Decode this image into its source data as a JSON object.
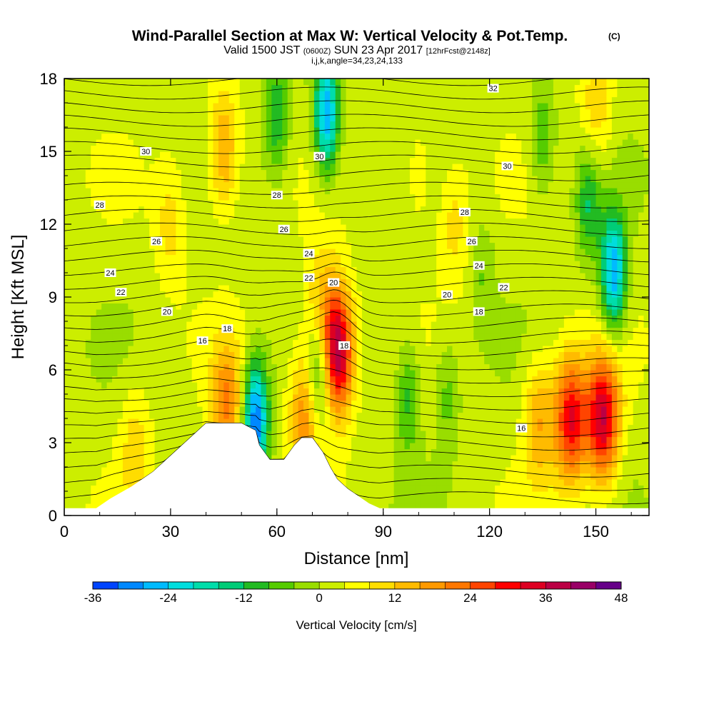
{
  "chart_data": {
    "type": "heatmap",
    "title": "Wind-Parallel Section at Max W: Vertical Velocity & Pot.Temp.",
    "title_mark": "(C)",
    "subtitle_main": "Valid 1500 JST",
    "subtitle_utc": "(0600Z)",
    "subtitle_date": "SUN 23 Apr 2017",
    "subtitle_fcst": "[12hrFcst@2148z]",
    "subtitle2": "i,j,k,angle=34,23,24,133",
    "xlabel": "Distance [nm]",
    "ylabel": "Height [Kft MSL]",
    "xlim": [
      0,
      165
    ],
    "ylim": [
      0,
      18
    ],
    "xticks": [
      "0",
      "30",
      "60",
      "90",
      "120",
      "150"
    ],
    "yticks": [
      "0",
      "3",
      "6",
      "9",
      "12",
      "15",
      "18"
    ],
    "colorbar": {
      "label": "Vertical Velocity [cm/s]",
      "range": [
        -36,
        48
      ],
      "step": 4,
      "ticks": [
        "-36",
        "-24",
        "-12",
        "0",
        "12",
        "24",
        "36",
        "48"
      ],
      "colors": [
        "#0000ff",
        "#0044ff",
        "#0088ff",
        "#00bbff",
        "#00dddd",
        "#00ddaa",
        "#00cc77",
        "#22bb22",
        "#55cc00",
        "#99dd00",
        "#ccee00",
        "#ffff00",
        "#ffdd00",
        "#ffbb00",
        "#ff9900",
        "#ff7700",
        "#ff4400",
        "#ff0000",
        "#dd0022",
        "#bb0044",
        "#990066",
        "#660088"
      ]
    },
    "updrafts": [
      {
        "x": 77,
        "z": 6.8,
        "w": 40
      },
      {
        "x": 143,
        "z": 4.0,
        "w": 30
      },
      {
        "x": 152,
        "z": 4.0,
        "w": 34
      },
      {
        "x": 46,
        "z": 4.5,
        "w": 18
      },
      {
        "x": 68,
        "z": 4.3,
        "w": 18
      },
      {
        "x": 45,
        "z": 15.0,
        "w": 16
      },
      {
        "x": 72,
        "z": 8.5,
        "w": 12
      },
      {
        "x": 134,
        "z": 4.0,
        "w": 14
      },
      {
        "x": 20,
        "z": 3.0,
        "w": 8
      },
      {
        "x": 30,
        "z": 12.0,
        "w": 8
      },
      {
        "x": 100,
        "z": 14.0,
        "w": 6
      },
      {
        "x": 110,
        "z": 12.0,
        "w": 8
      },
      {
        "x": 150,
        "z": 16.5,
        "w": 10
      }
    ],
    "downdrafts": [
      {
        "x": 54,
        "z": 4.0,
        "w": -34
      },
      {
        "x": 74,
        "z": 16.5,
        "w": -30
      },
      {
        "x": 60,
        "z": 16.5,
        "w": -14
      },
      {
        "x": 155,
        "z": 10.0,
        "w": -30
      },
      {
        "x": 148,
        "z": 13.0,
        "w": -14
      },
      {
        "x": 72,
        "z": 6.0,
        "w": -20
      },
      {
        "x": 97,
        "z": 5.0,
        "w": -12
      },
      {
        "x": 108,
        "z": 5.0,
        "w": -8
      },
      {
        "x": 135,
        "z": 15.5,
        "w": -10
      },
      {
        "x": 118,
        "z": 10.0,
        "w": -6
      }
    ],
    "theta_contours": {
      "levels": [
        16,
        18,
        20,
        22,
        24,
        26,
        28,
        30,
        32
      ],
      "labels": [
        {
          "text": "30",
          "x": 23,
          "z": 15.0
        },
        {
          "text": "28",
          "x": 10,
          "z": 12.8
        },
        {
          "text": "26",
          "x": 26,
          "z": 11.3
        },
        {
          "text": "24",
          "x": 13,
          "z": 10.0
        },
        {
          "text": "22",
          "x": 16,
          "z": 9.2
        },
        {
          "text": "20",
          "x": 29,
          "z": 8.4
        },
        {
          "text": "16",
          "x": 39,
          "z": 7.2
        },
        {
          "text": "18",
          "x": 46,
          "z": 7.7
        },
        {
          "text": "30",
          "x": 72,
          "z": 14.8
        },
        {
          "text": "28",
          "x": 60,
          "z": 13.2
        },
        {
          "text": "26",
          "x": 62,
          "z": 11.8
        },
        {
          "text": "24",
          "x": 69,
          "z": 10.8
        },
        {
          "text": "22",
          "x": 69,
          "z": 9.8
        },
        {
          "text": "20",
          "x": 76,
          "z": 9.6
        },
        {
          "text": "18",
          "x": 79,
          "z": 7.0
        },
        {
          "text": "32",
          "x": 121,
          "z": 17.6
        },
        {
          "text": "30",
          "x": 125,
          "z": 14.4
        },
        {
          "text": "28",
          "x": 113,
          "z": 12.5
        },
        {
          "text": "26",
          "x": 115,
          "z": 11.3
        },
        {
          "text": "24",
          "x": 117,
          "z": 10.3
        },
        {
          "text": "22",
          "x": 124,
          "z": 9.4
        },
        {
          "text": "20",
          "x": 108,
          "z": 9.1
        },
        {
          "text": "18",
          "x": 117,
          "z": 8.4
        },
        {
          "text": "16",
          "x": 129,
          "z": 3.6
        }
      ]
    },
    "terrain_x": [
      0,
      9,
      13,
      19,
      22,
      25,
      28,
      31,
      34,
      37,
      40,
      43,
      46,
      50,
      54,
      55,
      58,
      60,
      62,
      65,
      67,
      70,
      73,
      75,
      77,
      80,
      83,
      86,
      89,
      92,
      165
    ],
    "terrain_z": [
      0.3,
      0.3,
      0.7,
      1.2,
      1.5,
      1.8,
      2.2,
      2.6,
      3.0,
      3.4,
      3.8,
      3.8,
      3.8,
      3.8,
      3.5,
      2.9,
      2.3,
      2.3,
      2.3,
      2.9,
      3.2,
      3.2,
      2.6,
      2.0,
      1.5,
      1.1,
      0.8,
      0.5,
      0.3,
      0.3,
      0.3
    ]
  }
}
